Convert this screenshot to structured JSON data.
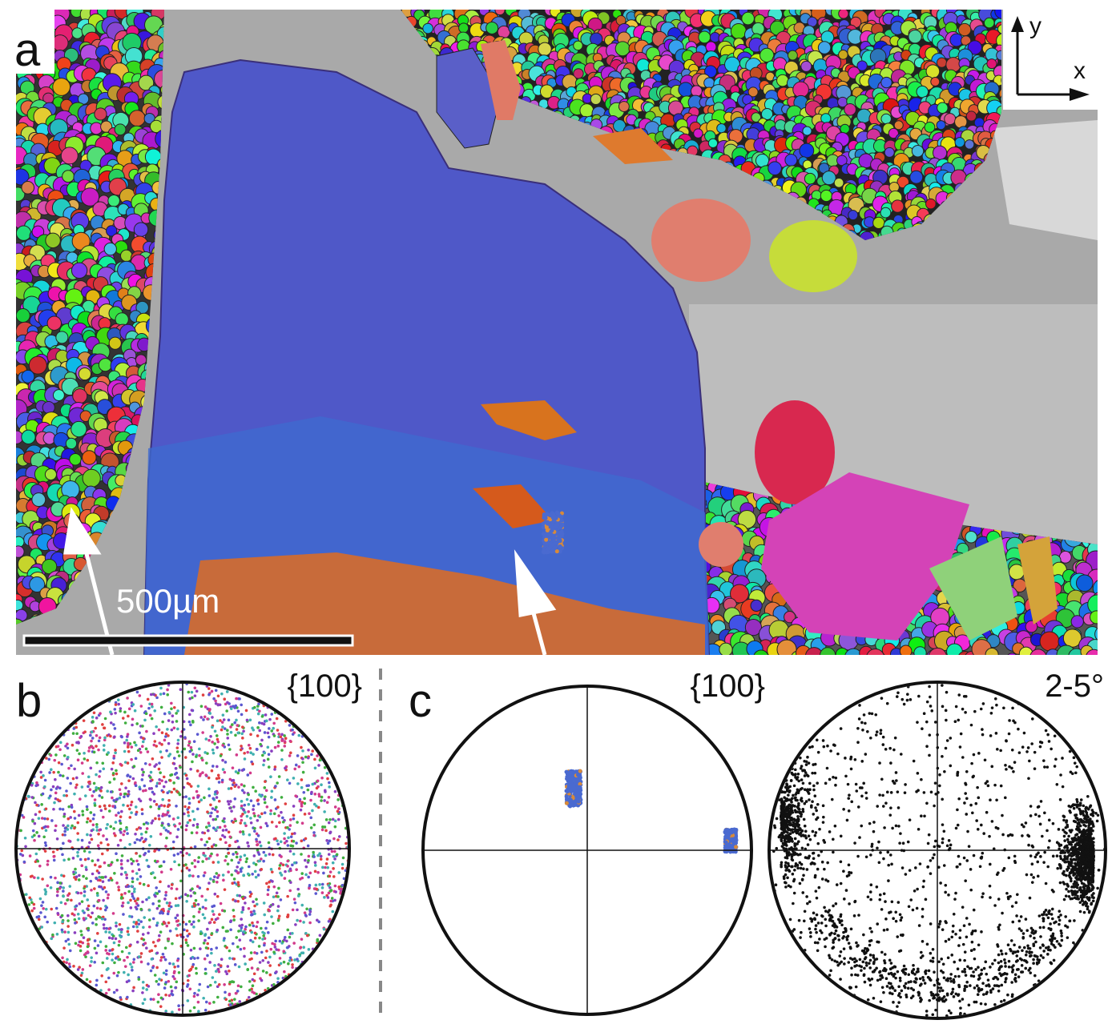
{
  "panel_a": {
    "label": "a",
    "scale_bar": "500µm",
    "axis_y": "y",
    "axis_x": "x"
  },
  "panel_b": {
    "label": "b",
    "title": "{100}"
  },
  "panel_c": {
    "label": "c",
    "pole_title": "{100}",
    "misorientation_title": "2-5°"
  }
}
